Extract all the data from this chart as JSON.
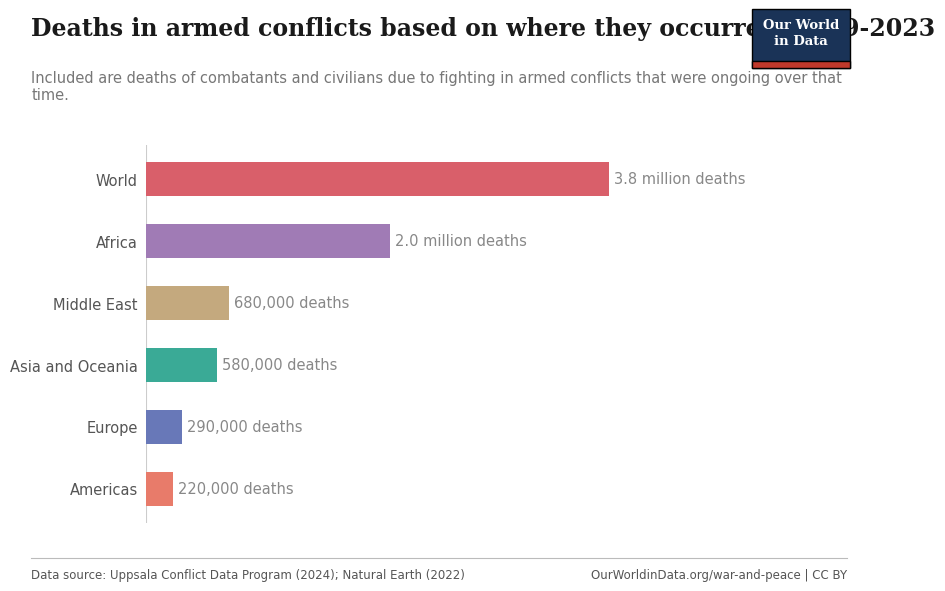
{
  "title": "Deaths in armed conflicts based on where they occurred, 1989-2023",
  "subtitle": "Included are deaths of combatants and civilians due to fighting in armed conflicts that were ongoing over that\ntime.",
  "categories": [
    "World",
    "Africa",
    "Middle East",
    "Asia and Oceania",
    "Europe",
    "Americas"
  ],
  "values": [
    3800000,
    2000000,
    680000,
    580000,
    290000,
    220000
  ],
  "labels": [
    "3.8 million deaths",
    "2.0 million deaths",
    "680,000 deaths",
    "580,000 deaths",
    "290,000 deaths",
    "220,000 deaths"
  ],
  "colors": [
    "#d95f6a",
    "#a07bb5",
    "#c4a97e",
    "#3aaa96",
    "#6878b8",
    "#e87b6a"
  ],
  "bar_height": 0.55,
  "data_source": "Data source: Uppsala Conflict Data Program (2024); Natural Earth (2022)",
  "url": "OurWorldinData.org/war-and-peace | CC BY",
  "owid_box_color": "#1a3357",
  "owid_red": "#c0392b",
  "background_color": "#ffffff",
  "title_fontsize": 17,
  "subtitle_fontsize": 10.5,
  "label_fontsize": 10.5,
  "category_fontsize": 10.5,
  "footer_fontsize": 8.5,
  "xlim": [
    0,
    4400000
  ]
}
